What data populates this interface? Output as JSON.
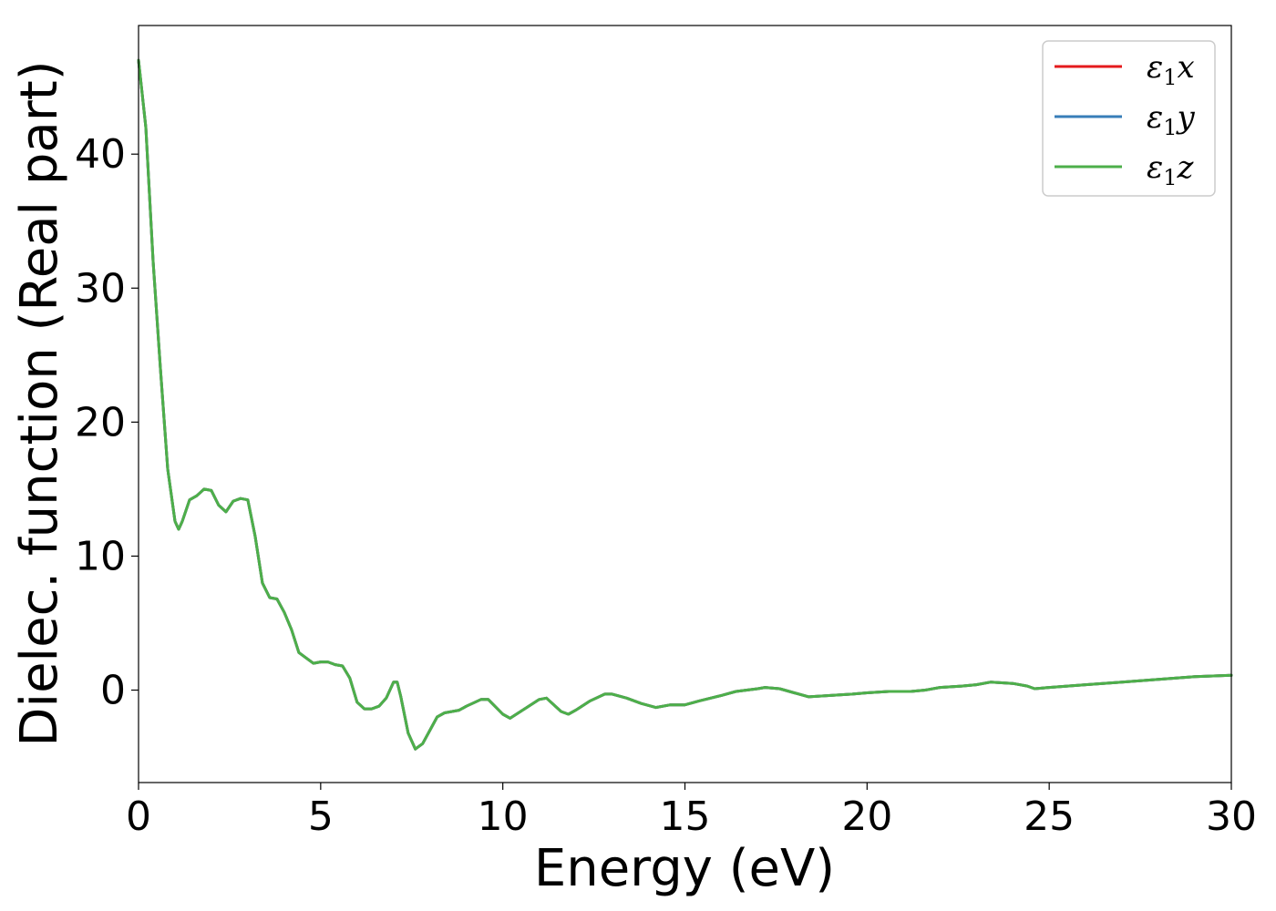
{
  "chart_data": {
    "type": "line",
    "title": "",
    "xlabel": "Energy (eV)",
    "ylabel": "Dielec. function (Real part)",
    "xlim": [
      0,
      30
    ],
    "ylim": [
      -6.9,
      49.6
    ],
    "xticks": [
      0,
      5,
      10,
      15,
      20,
      25,
      30
    ],
    "yticks": [
      0,
      10,
      20,
      30,
      40
    ],
    "grid": false,
    "legend_position": "top-right",
    "x": [
      0.0,
      0.2,
      0.4,
      0.6,
      0.8,
      1.0,
      1.1,
      1.2,
      1.4,
      1.6,
      1.8,
      2.0,
      2.2,
      2.4,
      2.6,
      2.8,
      3.0,
      3.2,
      3.4,
      3.6,
      3.8,
      4.0,
      4.2,
      4.4,
      4.6,
      4.8,
      5.0,
      5.2,
      5.4,
      5.6,
      5.8,
      6.0,
      6.2,
      6.4,
      6.6,
      6.8,
      7.0,
      7.1,
      7.2,
      7.4,
      7.6,
      7.8,
      8.0,
      8.2,
      8.4,
      8.8,
      9.0,
      9.4,
      9.6,
      10.0,
      10.2,
      10.6,
      11.0,
      11.2,
      11.6,
      11.8,
      12.0,
      12.4,
      12.8,
      13.0,
      13.4,
      13.8,
      14.2,
      14.6,
      15.0,
      15.4,
      16.0,
      16.4,
      17.0,
      17.2,
      17.6,
      18.0,
      18.4,
      19.0,
      19.6,
      20.0,
      20.6,
      21.2,
      21.6,
      22.0,
      22.6,
      23.0,
      23.4,
      24.0,
      24.4,
      24.6,
      25.0,
      26.0,
      27.0,
      28.0,
      29.0,
      30.0
    ],
    "series": [
      {
        "name": "ε1x",
        "color": "#e41a1c",
        "values": [
          47.0,
          42.0,
          32.0,
          24.0,
          16.5,
          12.6,
          12.0,
          12.6,
          14.2,
          14.5,
          15.0,
          14.9,
          13.8,
          13.3,
          14.1,
          14.3,
          14.2,
          11.5,
          8.0,
          6.9,
          6.8,
          5.8,
          4.5,
          2.8,
          2.4,
          2.0,
          2.1,
          2.1,
          1.9,
          1.8,
          0.9,
          -0.9,
          -1.4,
          -1.4,
          -1.2,
          -0.6,
          0.6,
          0.6,
          -0.5,
          -3.2,
          -4.4,
          -4.0,
          -3.0,
          -2.0,
          -1.7,
          -1.5,
          -1.2,
          -0.7,
          -0.7,
          -1.8,
          -2.1,
          -1.4,
          -0.7,
          -0.6,
          -1.6,
          -1.8,
          -1.5,
          -0.8,
          -0.3,
          -0.3,
          -0.6,
          -1.0,
          -1.3,
          -1.1,
          -1.1,
          -0.8,
          -0.4,
          -0.1,
          0.1,
          0.2,
          0.1,
          -0.2,
          -0.5,
          -0.4,
          -0.3,
          -0.2,
          -0.1,
          -0.1,
          0.0,
          0.2,
          0.3,
          0.4,
          0.6,
          0.5,
          0.3,
          0.1,
          0.2,
          0.4,
          0.6,
          0.8,
          1.0,
          1.1
        ]
      },
      {
        "name": "ε1y",
        "color": "#377eb8",
        "values": [
          47.0,
          42.0,
          32.0,
          24.0,
          16.5,
          12.6,
          12.0,
          12.6,
          14.2,
          14.5,
          15.0,
          14.9,
          13.8,
          13.3,
          14.1,
          14.3,
          14.2,
          11.5,
          8.0,
          6.9,
          6.8,
          5.8,
          4.5,
          2.8,
          2.4,
          2.0,
          2.1,
          2.1,
          1.9,
          1.8,
          0.9,
          -0.9,
          -1.4,
          -1.4,
          -1.2,
          -0.6,
          0.6,
          0.6,
          -0.5,
          -3.2,
          -4.4,
          -4.0,
          -3.0,
          -2.0,
          -1.7,
          -1.5,
          -1.2,
          -0.7,
          -0.7,
          -1.8,
          -2.1,
          -1.4,
          -0.7,
          -0.6,
          -1.6,
          -1.8,
          -1.5,
          -0.8,
          -0.3,
          -0.3,
          -0.6,
          -1.0,
          -1.3,
          -1.1,
          -1.1,
          -0.8,
          -0.4,
          -0.1,
          0.1,
          0.2,
          0.1,
          -0.2,
          -0.5,
          -0.4,
          -0.3,
          -0.2,
          -0.1,
          -0.1,
          0.0,
          0.2,
          0.3,
          0.4,
          0.6,
          0.5,
          0.3,
          0.1,
          0.2,
          0.4,
          0.6,
          0.8,
          1.0,
          1.1
        ]
      },
      {
        "name": "ε1z",
        "color": "#4daf4a",
        "values": [
          47.0,
          42.0,
          32.0,
          24.0,
          16.5,
          12.6,
          12.0,
          12.6,
          14.2,
          14.5,
          15.0,
          14.9,
          13.8,
          13.3,
          14.1,
          14.3,
          14.2,
          11.5,
          8.0,
          6.9,
          6.8,
          5.8,
          4.5,
          2.8,
          2.4,
          2.0,
          2.1,
          2.1,
          1.9,
          1.8,
          0.9,
          -0.9,
          -1.4,
          -1.4,
          -1.2,
          -0.6,
          0.6,
          0.6,
          -0.5,
          -3.2,
          -4.4,
          -4.0,
          -3.0,
          -2.0,
          -1.7,
          -1.5,
          -1.2,
          -0.7,
          -0.7,
          -1.8,
          -2.1,
          -1.4,
          -0.7,
          -0.6,
          -1.6,
          -1.8,
          -1.5,
          -0.8,
          -0.3,
          -0.3,
          -0.6,
          -1.0,
          -1.3,
          -1.1,
          -1.1,
          -0.8,
          -0.4,
          -0.1,
          0.1,
          0.2,
          0.1,
          -0.2,
          -0.5,
          -0.4,
          -0.3,
          -0.2,
          -0.1,
          -0.1,
          0.0,
          0.2,
          0.3,
          0.4,
          0.6,
          0.5,
          0.3,
          0.1,
          0.2,
          0.4,
          0.6,
          0.8,
          1.0,
          1.1
        ]
      }
    ]
  }
}
